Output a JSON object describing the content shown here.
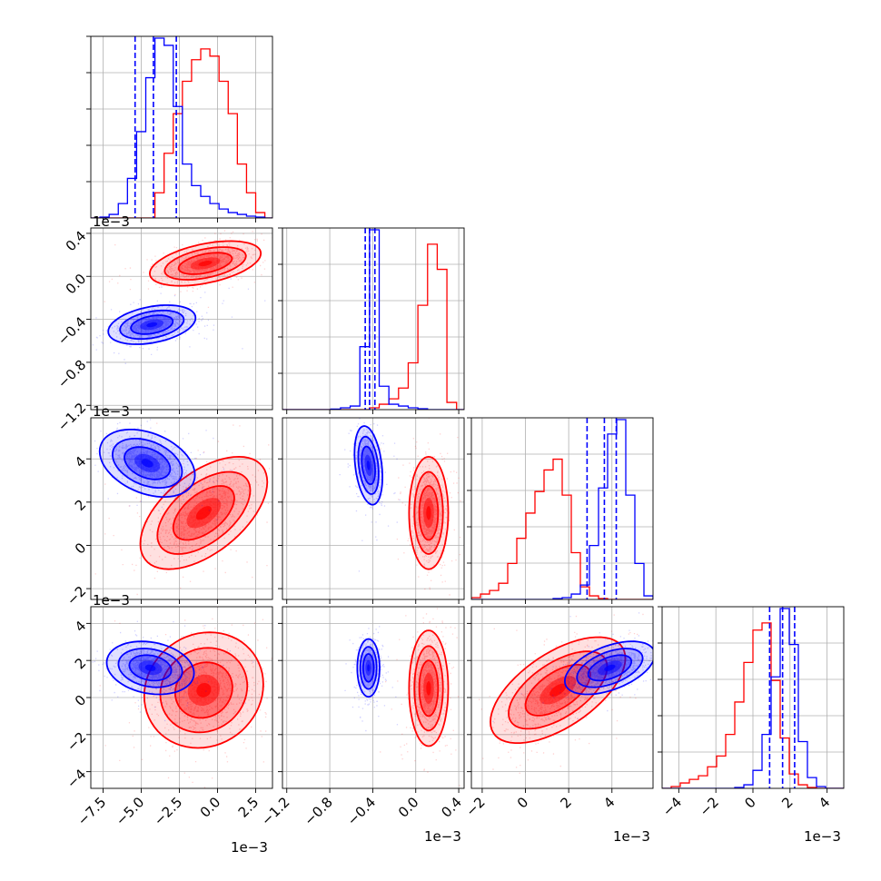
{
  "chart_data": {
    "type": "corner",
    "colors": {
      "sample_a": "#0000ff",
      "sample_b": "#ff0000"
    },
    "grid": true,
    "parameters": [
      {
        "offset": "1e−3",
        "ticks": [
          -7.5,
          -5.0,
          -2.5,
          0.0,
          2.5
        ],
        "tick_labels": [
          "−7.5",
          "−5.0",
          "−2.5",
          "0.0",
          "2.5"
        ],
        "range": [
          -8.3,
          3.6
        ]
      },
      {
        "offset": "1e−3",
        "ticks": [
          -1.2,
          -0.8,
          -0.4,
          0.0,
          0.4
        ],
        "tick_labels": [
          "−1.2",
          "−0.8",
          "−0.4",
          "0.0",
          "0.4"
        ],
        "range": [
          -1.24,
          0.45
        ]
      },
      {
        "offset": "1e−3",
        "ticks": [
          -2,
          0,
          2,
          4
        ],
        "tick_labels": [
          "−2",
          "0",
          "2",
          "4"
        ],
        "range": [
          -2.5,
          5.9
        ]
      },
      {
        "offset": "1e−3",
        "ticks": [
          -4,
          -2,
          0,
          2,
          4
        ],
        "tick_labels": [
          "−4",
          "−2",
          "0",
          "2",
          "4"
        ],
        "range": [
          -4.9,
          4.9
        ]
      }
    ],
    "marginals": [
      {
        "edges": [
          -8.3,
          -7.7,
          -7.1,
          -6.5,
          -5.9,
          -5.3,
          -4.7,
          -4.1,
          -3.5,
          -2.9,
          -2.3,
          -1.7,
          -1.1,
          -0.5,
          0.1,
          0.7,
          1.3,
          1.9,
          2.5,
          3.1,
          3.6
        ],
        "sample_a": [
          0,
          0.5,
          2,
          8,
          22,
          48,
          78,
          100,
          96,
          62,
          30,
          18,
          12,
          8,
          5,
          3,
          2,
          1,
          0.5,
          0
        ],
        "sample_b": [
          0,
          0,
          0,
          0,
          0,
          0,
          0,
          14,
          36,
          58,
          76,
          88,
          94,
          90,
          76,
          58,
          30,
          14,
          3,
          0
        ],
        "quantiles_a": [
          -5.4,
          -4.2,
          -2.7
        ]
      },
      {
        "edges": [
          -1.24,
          -1.15,
          -1.06,
          -0.97,
          -0.88,
          -0.79,
          -0.7,
          -0.61,
          -0.52,
          -0.43,
          -0.34,
          -0.25,
          -0.16,
          -0.07,
          0.02,
          0.11,
          0.2,
          0.29,
          0.38,
          0.45
        ],
        "sample_a": [
          0,
          0,
          0,
          0,
          0,
          0.3,
          1,
          2,
          35,
          100,
          13,
          3,
          2,
          1,
          0.5,
          0,
          0,
          0,
          0
        ],
        "sample_b": [
          0,
          0,
          0,
          0,
          0,
          0,
          0,
          0,
          0,
          1,
          3,
          6,
          12,
          26,
          58,
          92,
          78,
          4,
          0
        ],
        "quantiles_a": [
          -0.47,
          -0.43,
          -0.38
        ]
      },
      {
        "edges": [
          -2.5,
          -2.08,
          -1.66,
          -1.24,
          -0.82,
          -0.4,
          0.02,
          0.44,
          0.86,
          1.28,
          1.7,
          2.12,
          2.54,
          2.96,
          3.38,
          3.8,
          4.22,
          4.64,
          5.06,
          5.48,
          5.9
        ],
        "sample_a": [
          0,
          0,
          0,
          0,
          0,
          0,
          0,
          0,
          0,
          0.5,
          1,
          3,
          8,
          30,
          62,
          92,
          100,
          58,
          20,
          2
        ],
        "sample_b": [
          1,
          3,
          5,
          9,
          20,
          34,
          48,
          60,
          72,
          78,
          58,
          26,
          7,
          2,
          0.5,
          0,
          0,
          0,
          0,
          0
        ],
        "quantiles_a": [
          2.85,
          3.65,
          4.2
        ]
      },
      {
        "edges": [
          -4.9,
          -4.41,
          -3.92,
          -3.43,
          -2.94,
          -2.45,
          -1.96,
          -1.47,
          -0.98,
          -0.49,
          0,
          0.49,
          0.98,
          1.47,
          1.96,
          2.45,
          2.94,
          3.43,
          3.92,
          4.41,
          4.9
        ],
        "sample_a": [
          0,
          0,
          0,
          0,
          0,
          0,
          0,
          0,
          0.5,
          2,
          10,
          30,
          62,
          100,
          80,
          26,
          6,
          1,
          0,
          0
        ],
        "sample_b": [
          0,
          1,
          3,
          5,
          7,
          12,
          18,
          30,
          48,
          70,
          88,
          92,
          60,
          28,
          8,
          2,
          0.5,
          0,
          0,
          0
        ],
        "quantiles_a": [
          0.9,
          1.6,
          2.25
        ]
      }
    ],
    "pairs": [
      {
        "row": 1,
        "col": 0,
        "sample_a": {
          "mean": [
            -4.3,
            -0.45
          ],
          "sd": [
            1.1,
            0.07
          ],
          "rho": 0.35
        },
        "sample_b": {
          "mean": [
            -0.8,
            0.12
          ],
          "sd": [
            1.4,
            0.08
          ],
          "rho": 0.45
        }
      },
      {
        "row": 2,
        "col": 0,
        "sample_a": {
          "mean": [
            -4.6,
            3.8
          ],
          "sd": [
            1.2,
            0.6
          ],
          "rho": -0.35
        },
        "sample_b": {
          "mean": [
            -0.9,
            1.5
          ],
          "sd": [
            1.6,
            1.0
          ],
          "rho": 0.55
        }
      },
      {
        "row": 2,
        "col": 1,
        "sample_a": {
          "mean": [
            -0.44,
            3.7
          ],
          "sd": [
            0.05,
            0.7
          ],
          "rho": -0.3
        },
        "sample_b": {
          "mean": [
            0.12,
            1.5
          ],
          "sd": [
            0.07,
            1.0
          ],
          "rho": 0.0
        }
      },
      {
        "row": 3,
        "col": 0,
        "sample_a": {
          "mean": [
            -4.4,
            1.6
          ],
          "sd": [
            1.1,
            0.55
          ],
          "rho": -0.2
        },
        "sample_b": {
          "mean": [
            -0.9,
            0.4
          ],
          "sd": [
            1.5,
            1.2
          ],
          "rho": 0.1
        }
      },
      {
        "row": 3,
        "col": 1,
        "sample_a": {
          "mean": [
            -0.44,
            1.6
          ],
          "sd": [
            0.04,
            0.6
          ],
          "rho": 0.0
        },
        "sample_b": {
          "mean": [
            0.12,
            0.5
          ],
          "sd": [
            0.07,
            1.2
          ],
          "rho": 0.0
        }
      },
      {
        "row": 3,
        "col": 2,
        "sample_a": {
          "mean": [
            3.9,
            1.6
          ],
          "sd": [
            0.8,
            0.55
          ],
          "rho": 0.5
        },
        "sample_b": {
          "mean": [
            1.5,
            0.4
          ],
          "sd": [
            1.2,
            1.1
          ],
          "rho": 0.6
        }
      }
    ]
  }
}
